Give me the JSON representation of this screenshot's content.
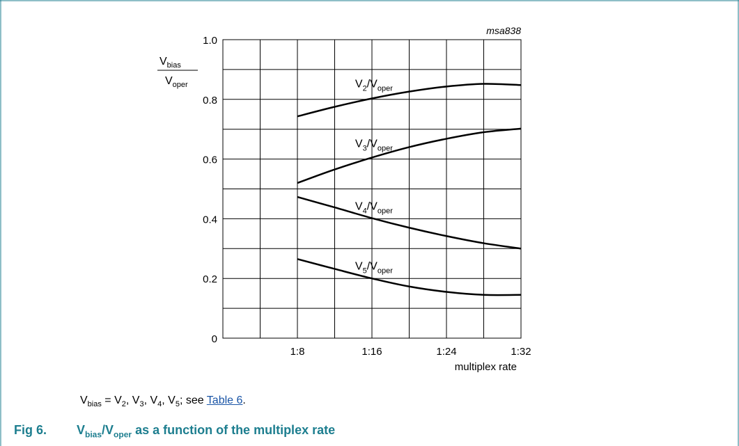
{
  "chart_data": {
    "type": "line",
    "code": "msa838",
    "ylabel": {
      "top_main": "V",
      "top_sub": "bias",
      "bottom_main": "V",
      "bottom_sub": "oper"
    },
    "xlabel": "multiplex rate",
    "x_ticks": [
      {
        "value": 8,
        "label": "1:8"
      },
      {
        "value": 16,
        "label": "1:16"
      },
      {
        "value": 24,
        "label": "1:24"
      },
      {
        "value": 32,
        "label": "1:32"
      }
    ],
    "y_ticks": [
      {
        "value": 0,
        "label": "0"
      },
      {
        "value": 0.2,
        "label": "0.2"
      },
      {
        "value": 0.4,
        "label": "0.4"
      },
      {
        "value": 0.6,
        "label": "0.6"
      },
      {
        "value": 0.8,
        "label": "0.8"
      },
      {
        "value": 1.0,
        "label": "1.0"
      }
    ],
    "xlim": [
      0,
      32
    ],
    "ylim": [
      0,
      1.0
    ],
    "grid": true,
    "series": [
      {
        "name": "V2/Voper",
        "label_main": "V",
        "label_sub": "2",
        "label_tail": "/V",
        "label_tail_sub": "oper",
        "label_at": [
          14.2,
          0.84
        ],
        "x": [
          8,
          12,
          16,
          20,
          24,
          28,
          32
        ],
        "y": [
          0.743,
          0.775,
          0.803,
          0.826,
          0.843,
          0.852,
          0.848
        ]
      },
      {
        "name": "V3/Voper",
        "label_main": "V",
        "label_sub": "3",
        "label_tail": "/V",
        "label_tail_sub": "oper",
        "label_at": [
          14.2,
          0.64
        ],
        "x": [
          8,
          12,
          16,
          20,
          24,
          28,
          32
        ],
        "y": [
          0.52,
          0.565,
          0.605,
          0.64,
          0.668,
          0.69,
          0.702
        ]
      },
      {
        "name": "V4/Voper",
        "label_main": "V",
        "label_sub": "4",
        "label_tail": "/V",
        "label_tail_sub": "oper",
        "label_at": [
          14.2,
          0.43
        ],
        "x": [
          8,
          12,
          16,
          20,
          24,
          28,
          32
        ],
        "y": [
          0.473,
          0.438,
          0.402,
          0.37,
          0.342,
          0.318,
          0.3
        ]
      },
      {
        "name": "V5/Voper",
        "label_main": "V",
        "label_sub": "5",
        "label_tail": "/V",
        "label_tail_sub": "oper",
        "label_at": [
          14.2,
          0.23
        ],
        "x": [
          8,
          12,
          16,
          20,
          24,
          28,
          32
        ],
        "y": [
          0.265,
          0.232,
          0.2,
          0.173,
          0.155,
          0.145,
          0.145
        ]
      }
    ]
  },
  "note": {
    "v_main": "V",
    "v_sub": "bias",
    "eq": " = V",
    "s2": "2",
    "c1": ", V",
    "s3": "3",
    "c2": ", V",
    "s4": "4",
    "c3": ", V",
    "s5": "5",
    "see": "; see ",
    "link": "Table 6",
    "end": "."
  },
  "caption": {
    "number": "Fig 6.",
    "t_main": "V",
    "t_sub": "bias",
    "t_slash": "/V",
    "t_sub2": "oper",
    "t_rest": " as a function of the multiplex rate"
  },
  "colors": {
    "frame": "#1d7e8f",
    "caption": "#1d7e8f",
    "link": "#1a55a6",
    "curve": "#000000",
    "grid": "#000000"
  }
}
